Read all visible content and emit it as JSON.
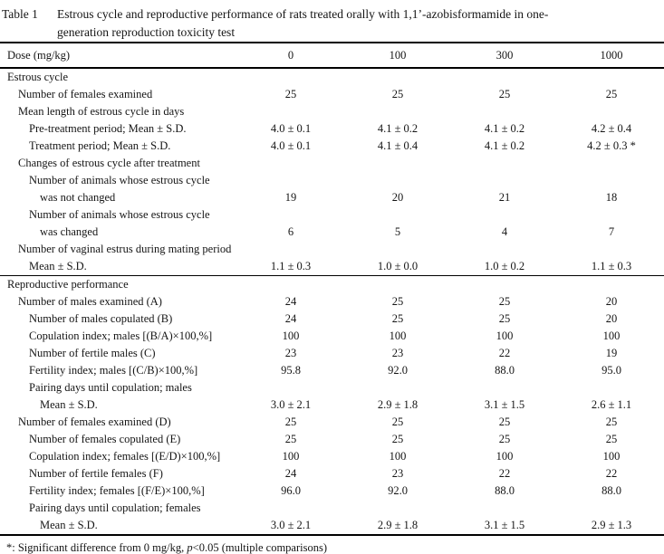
{
  "title": {
    "label": "Table 1",
    "lines": [
      "Estrous cycle and reproductive performance of rats treated orally with 1,1’-azobisformamide in one-",
      "generation reproduction toxicity test"
    ]
  },
  "table": {
    "dose_label": "Dose (mg/kg)",
    "doses": [
      "0",
      "100",
      "300",
      "1000"
    ],
    "sections": [
      {
        "rows": [
          {
            "label": "Estrous cycle",
            "indent": 0,
            "values": [
              "",
              "",
              "",
              ""
            ]
          },
          {
            "label": "Number of females examined",
            "indent": 1,
            "values": [
              "25",
              "25",
              "25",
              "25"
            ]
          },
          {
            "label": "Mean length of estrous cycle in days",
            "indent": 1,
            "values": [
              "",
              "",
              "",
              ""
            ]
          },
          {
            "label": "Pre-treatment period; Mean ± S.D.",
            "indent": 2,
            "values": [
              "4.0 ± 0.1",
              "4.1 ± 0.2",
              "4.1 ± 0.2",
              "4.2 ± 0.4"
            ]
          },
          {
            "label": "Treatment period; Mean ± S.D.",
            "indent": 2,
            "values": [
              "4.0 ± 0.1",
              "4.1 ± 0.4",
              "4.1 ± 0.2",
              "4.2 ± 0.3 *"
            ]
          },
          {
            "label": "Changes of estrous cycle after treatment",
            "indent": 1,
            "values": [
              "",
              "",
              "",
              ""
            ]
          },
          {
            "label": "Number of animals whose estrous cycle",
            "indent": 2,
            "values": [
              "",
              "",
              "",
              ""
            ]
          },
          {
            "label": "was not changed",
            "indent": 3,
            "values": [
              "19",
              "20",
              "21",
              "18"
            ]
          },
          {
            "label": "Number of animals whose estrous cycle",
            "indent": 2,
            "values": [
              "",
              "",
              "",
              ""
            ]
          },
          {
            "label": "was changed",
            "indent": 3,
            "values": [
              "6",
              "5",
              "4",
              "7"
            ]
          },
          {
            "label": "Number of vaginal estrus during mating period",
            "indent": 1,
            "values": [
              "",
              "",
              "",
              ""
            ]
          },
          {
            "label": "Mean ± S.D.",
            "indent": 2,
            "values": [
              "1.1 ± 0.3",
              "1.0 ± 0.0",
              "1.0 ± 0.2",
              "1.1 ± 0.3"
            ]
          }
        ]
      },
      {
        "rows": [
          {
            "label": "Reproductive performance",
            "indent": 0,
            "values": [
              "",
              "",
              "",
              ""
            ]
          },
          {
            "label": "Number of males examined (A)",
            "indent": 1,
            "values": [
              "24",
              "25",
              "25",
              "20"
            ]
          },
          {
            "label": "Number of males copulated (B)",
            "indent": 2,
            "values": [
              "24",
              "25",
              "25",
              "20"
            ]
          },
          {
            "label": "Copulation index; males [(B/A)×100,%]",
            "indent": 2,
            "values": [
              "100",
              "100",
              "100",
              "100"
            ]
          },
          {
            "label": "Number of fertile males (C)",
            "indent": 2,
            "values": [
              "23",
              "23",
              "22",
              "19"
            ]
          },
          {
            "label": "Fertility index; males [(C/B)×100,%]",
            "indent": 2,
            "values": [
              "95.8",
              "92.0",
              "88.0",
              "95.0"
            ]
          },
          {
            "label": "Pairing days until copulation; males",
            "indent": 2,
            "values": [
              "",
              "",
              "",
              ""
            ]
          },
          {
            "label": "Mean ± S.D.",
            "indent": 3,
            "values": [
              "3.0 ± 2.1",
              "2.9 ± 1.8",
              "3.1 ± 1.5",
              "2.6 ± 1.1"
            ]
          },
          {
            "label": "Number of females examined (D)",
            "indent": 1,
            "values": [
              "25",
              "25",
              "25",
              "25"
            ]
          },
          {
            "label": "Number of females copulated (E)",
            "indent": 2,
            "values": [
              "25",
              "25",
              "25",
              "25"
            ]
          },
          {
            "label": "Copulation index; females [(E/D)×100,%]",
            "indent": 2,
            "values": [
              "100",
              "100",
              "100",
              "100"
            ]
          },
          {
            "label": "Number of fertile females (F)",
            "indent": 2,
            "values": [
              "24",
              "23",
              "22",
              "22"
            ]
          },
          {
            "label": "Fertility index; females [(F/E)×100,%]",
            "indent": 2,
            "values": [
              "96.0",
              "92.0",
              "88.0",
              "88.0"
            ]
          },
          {
            "label": "Pairing days until copulation; females",
            "indent": 2,
            "values": [
              "",
              "",
              "",
              ""
            ]
          },
          {
            "label": "Mean ± S.D.",
            "indent": 3,
            "values": [
              "3.0 ± 2.1",
              "2.9 ± 1.8",
              "3.1 ± 1.5",
              "2.9 ± 1.3"
            ]
          }
        ]
      }
    ]
  },
  "footnote": {
    "marker": "*: ",
    "before": "Significant difference from 0 mg/kg, ",
    "p_symbol": "p",
    "after": "<0.05 (multiple comparisons)"
  }
}
